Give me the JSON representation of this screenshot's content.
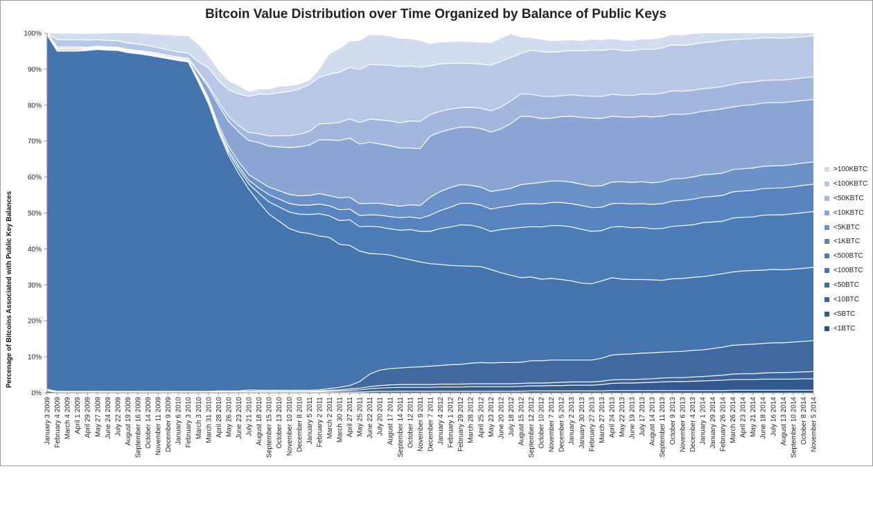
{
  "chart_data": {
    "type": "area",
    "title": "Bitcoin Value Distribution over Time Organized by Balance of Public Keys",
    "ylabel": "Percenage of Bitcoins  Associated with Public Key Balances",
    "xlabel": "",
    "ylim": [
      0,
      100
    ],
    "yticks": [
      "0%",
      "10%",
      "20%",
      "30%",
      "40%",
      "50%",
      "60%",
      "70%",
      "80%",
      "90%",
      "100%"
    ],
    "grid": false,
    "legend": "right",
    "x": [
      "January 3 2009",
      "February 4 2009",
      "March 4 2009",
      "April 1 2009",
      "April 29 2009",
      "May 27 2009",
      "June 24 2009",
      "July 22 2009",
      "August 19 2009",
      "September 16 2009",
      "October 14 2009",
      "November 11 2009",
      "December 9 2009",
      "January 6 2010",
      "February 3 2010",
      "March 3 2010",
      "March 31 2010",
      "April 28 2010",
      "May 26 2010",
      "June 23 2010",
      "July 21 2010",
      "August 18 2010",
      "September 15 2010",
      "October 13 2010",
      "November 10 2010",
      "December 8 2010",
      "January 5 2011",
      "February 2 2011",
      "March 2 2011",
      "March 30 2011",
      "April 27 2011",
      "May 25 2011",
      "June 22 2011",
      "July 20 2011",
      "August 17 2011",
      "September 14 2011",
      "October 12 2011",
      "November 9 2011",
      "December 7 2011",
      "January 4 2012",
      "February 1 2012",
      "February 29 2012",
      "March 28 2012",
      "April 25 2012",
      "May 23 2012",
      "June 20 2012",
      "July 18 2012",
      "August 15 2012",
      "September 12 2012",
      "October 10 2012",
      "November 7 2012",
      "December 5 2012",
      "January 2 2013",
      "January 30 2013",
      "February 27 2013",
      "March 27 2013",
      "April 24 2013",
      "May 22 2013",
      "June 19 2013",
      "July 17 2013",
      "August 14 2013",
      "September 11 2013",
      "October 9 2013",
      "November 6 2013",
      "December 4 2013",
      "January 1 2014",
      "January 29 2014",
      "February 26 2014",
      "March 26 2014",
      "April 23 2014",
      "May 21 2014",
      "June 18 2014",
      "July 16 2014",
      "August 13 2014",
      "September 10 2014",
      "October 8 2014",
      "November 5 2014"
    ],
    "series": [
      {
        "name": "<1BTC",
        "color": "#2c4f82",
        "values": [
          0.5,
          0.1,
          0.1,
          0.1,
          0.1,
          0.1,
          0.1,
          0.1,
          0.1,
          0.1,
          0.1,
          0.1,
          0.1,
          0.1,
          0.1,
          0.1,
          0.1,
          0.1,
          0.1,
          0.1,
          0.1,
          0.1,
          0.1,
          0.1,
          0.1,
          0.1,
          0.1,
          0.1,
          0.1,
          0.1,
          0.2,
          0.2,
          0.3,
          0.4,
          0.4,
          0.4,
          0.4,
          0.4,
          0.4,
          0.4,
          0.4,
          0.4,
          0.4,
          0.4,
          0.4,
          0.4,
          0.4,
          0.4,
          0.5,
          0.5,
          0.5,
          0.5,
          0.5,
          0.5,
          0.5,
          0.5,
          0.6,
          0.6,
          0.6,
          0.6,
          0.6,
          0.6,
          0.6,
          0.6,
          0.6,
          0.6,
          0.6,
          0.6,
          0.7,
          0.7,
          0.7,
          0.7,
          0.7,
          0.7,
          0.7,
          0.7,
          0.7
        ]
      },
      {
        "name": "<5BTC",
        "color": "#34598f",
        "values": [
          0.2,
          0.1,
          0.1,
          0.1,
          0.1,
          0.1,
          0.1,
          0.1,
          0.1,
          0.1,
          0.1,
          0.1,
          0.1,
          0.1,
          0.1,
          0.1,
          0.1,
          0.1,
          0.1,
          0.1,
          0.1,
          0.1,
          0.1,
          0.1,
          0.1,
          0.1,
          0.1,
          0.2,
          0.3,
          0.4,
          0.5,
          0.6,
          0.8,
          0.9,
          1.0,
          1.1,
          1.1,
          1.1,
          1.1,
          1.2,
          1.2,
          1.2,
          1.3,
          1.3,
          1.3,
          1.3,
          1.3,
          1.4,
          1.4,
          1.4,
          1.5,
          1.5,
          1.6,
          1.6,
          1.6,
          1.8,
          2.0,
          2.1,
          2.1,
          2.2,
          2.3,
          2.4,
          2.5,
          2.5,
          2.6,
          2.7,
          2.8,
          2.9,
          3.0,
          3.0,
          3.0,
          3.1,
          3.1,
          3.1,
          3.1,
          3.2,
          3.2
        ]
      },
      {
        "name": "<10BTC",
        "color": "#3c629b",
        "values": [
          0.1,
          0.1,
          0.1,
          0.1,
          0.1,
          0.1,
          0.1,
          0.1,
          0.1,
          0.1,
          0.1,
          0.1,
          0.1,
          0.1,
          0.1,
          0.1,
          0.1,
          0.2,
          0.2,
          0.2,
          0.2,
          0.2,
          0.2,
          0.2,
          0.2,
          0.2,
          0.2,
          0.2,
          0.3,
          0.3,
          0.4,
          0.5,
          0.6,
          0.7,
          0.8,
          0.8,
          0.8,
          0.8,
          0.8,
          0.8,
          0.8,
          0.8,
          0.8,
          0.8,
          0.8,
          0.8,
          0.8,
          0.8,
          0.8,
          0.8,
          0.8,
          0.9,
          0.9,
          0.9,
          0.9,
          0.9,
          1.0,
          1.0,
          1.0,
          1.0,
          1.0,
          1.1,
          1.1,
          1.1,
          1.2,
          1.2,
          1.3,
          1.4,
          1.5,
          1.6,
          1.6,
          1.7,
          1.8,
          1.8,
          1.9,
          1.9,
          2.0
        ]
      },
      {
        "name": "<50BTC",
        "color": "#41699f",
        "values": [
          0.2,
          0.1,
          0.1,
          0.1,
          0.1,
          0.1,
          0.1,
          0.1,
          0.1,
          0.1,
          0.1,
          0.1,
          0.1,
          0.1,
          0.1,
          0.1,
          0.1,
          0.1,
          0.1,
          0.1,
          0.4,
          0.3,
          0.3,
          0.3,
          0.3,
          0.3,
          0.3,
          0.3,
          0.5,
          0.7,
          0.9,
          1.8,
          3.5,
          4.3,
          4.5,
          4.6,
          4.8,
          4.9,
          5.1,
          5.2,
          5.4,
          5.5,
          5.7,
          5.9,
          5.8,
          5.9,
          5.9,
          5.9,
          6.2,
          6.2,
          6.3,
          6.2,
          6.1,
          6.1,
          6.1,
          6.4,
          6.9,
          7.0,
          7.1,
          7.2,
          7.2,
          7.2,
          7.2,
          7.3,
          7.4,
          7.4,
          7.6,
          7.8,
          8.0,
          8.1,
          8.2,
          8.2,
          8.3,
          8.3,
          8.4,
          8.5,
          8.6
        ]
      },
      {
        "name": "<100BTC",
        "color": "#4674ae",
        "values": [
          98.5,
          94.6,
          94.6,
          94.6,
          94.8,
          95.1,
          94.9,
          94.8,
          94.2,
          93.9,
          93.5,
          93.0,
          92.5,
          92.0,
          91.6,
          86.0,
          80.0,
          72.0,
          65.5,
          60.5,
          55.8,
          52.3,
          49.0,
          47.0,
          45.0,
          44.0,
          43.6,
          42.8,
          42.0,
          39.8,
          39.0,
          36.3,
          33.5,
          32.3,
          31.6,
          30.7,
          29.9,
          29.2,
          28.5,
          28.1,
          27.6,
          27.4,
          27.0,
          26.7,
          26.0,
          25.0,
          24.3,
          23.5,
          23.3,
          22.7,
          22.7,
          22.4,
          22.0,
          21.4,
          21.2,
          21.5,
          21.5,
          20.9,
          20.7,
          20.5,
          20.3,
          20.0,
          20.3,
          20.3,
          20.3,
          20.4,
          20.4,
          20.4,
          20.4,
          20.5,
          20.5,
          20.4,
          20.4,
          20.3,
          20.3,
          20.3,
          20.4
        ]
      },
      {
        "name": "<500BTC",
        "color": "#4c7db8",
        "values": [
          0.1,
          0.3,
          0.3,
          0.3,
          0.2,
          0.2,
          0.2,
          0.2,
          0.2,
          0.2,
          0.2,
          0.2,
          0.2,
          0.2,
          0.2,
          0.3,
          0.5,
          0.6,
          0.8,
          1.2,
          1.5,
          2.5,
          3.4,
          4.0,
          4.6,
          5.0,
          5.3,
          6.2,
          6.0,
          6.6,
          7.1,
          6.8,
          7.6,
          7.5,
          7.3,
          7.6,
          8.4,
          8.5,
          9.0,
          10.0,
          10.7,
          11.4,
          11.4,
          10.9,
          10.6,
          12.0,
          13.0,
          14.0,
          14.0,
          14.5,
          14.7,
          15.0,
          15.0,
          15.0,
          14.6,
          14.0,
          14.1,
          14.6,
          14.4,
          14.5,
          14.2,
          14.4,
          14.6,
          14.7,
          14.6,
          15.0,
          14.8,
          14.6,
          15.0,
          14.9,
          14.9,
          15.3,
          15.2,
          15.3,
          15.4,
          15.5,
          15.5
        ]
      },
      {
        "name": "<1KBTC",
        "color": "#5784c0",
        "values": [
          0.1,
          0.3,
          0.3,
          0.3,
          0.2,
          0.2,
          0.2,
          0.2,
          0.2,
          0.2,
          0.2,
          0.2,
          0.2,
          0.2,
          0.2,
          0.4,
          0.5,
          0.6,
          0.7,
          0.8,
          1.0,
          1.5,
          2.0,
          2.2,
          2.4,
          2.5,
          2.6,
          2.7,
          2.8,
          3.0,
          3.0,
          3.1,
          3.2,
          3.3,
          3.4,
          3.5,
          3.5,
          3.6,
          4.5,
          5.0,
          5.5,
          6.0,
          6.1,
          6.2,
          6.2,
          6.2,
          6.3,
          6.5,
          6.4,
          6.4,
          6.4,
          6.4,
          6.5,
          6.6,
          6.6,
          6.5,
          6.5,
          6.5,
          6.6,
          6.6,
          6.8,
          6.9,
          7.0,
          7.0,
          7.1,
          7.1,
          7.1,
          7.2,
          7.3,
          7.3,
          7.4,
          7.4,
          7.4,
          7.5,
          7.5,
          7.6,
          7.6
        ]
      },
      {
        "name": "<5KBTC",
        "color": "#6b91c8",
        "values": [
          0.1,
          0.2,
          0.2,
          0.2,
          0.2,
          0.2,
          0.2,
          0.2,
          0.2,
          0.2,
          0.2,
          0.2,
          0.2,
          0.2,
          0.2,
          0.4,
          0.6,
          0.8,
          1.0,
          1.2,
          1.6,
          1.9,
          2.1,
          2.3,
          2.5,
          2.6,
          2.7,
          2.9,
          2.8,
          3.3,
          3.3,
          3.3,
          3.2,
          3.3,
          3.3,
          3.2,
          3.4,
          3.6,
          5.0,
          5.3,
          5.5,
          5.2,
          5.0,
          5.0,
          4.9,
          4.8,
          4.9,
          5.4,
          5.6,
          6.0,
          6.0,
          6.0,
          6.0,
          5.9,
          6.0,
          6.0,
          6.0,
          6.0,
          6.0,
          6.1,
          6.0,
          6.1,
          6.2,
          6.1,
          6.2,
          6.2,
          6.2,
          6.2,
          6.2,
          6.2,
          6.2,
          6.2,
          6.2,
          6.2,
          6.2,
          6.2,
          6.2
        ]
      },
      {
        "name": "<10KBTC",
        "color": "#8aa5d3",
        "values": [
          0.1,
          0.3,
          0.3,
          0.3,
          0.2,
          0.2,
          0.2,
          0.2,
          0.2,
          0.2,
          0.3,
          0.3,
          0.3,
          0.3,
          0.3,
          1.5,
          3.0,
          5.5,
          7.0,
          8.3,
          9.5,
          10.7,
          11.4,
          12.2,
          13.0,
          13.6,
          14.0,
          15.0,
          15.5,
          16.0,
          16.4,
          16.6,
          17.0,
          16.5,
          16.4,
          16.2,
          15.8,
          15.8,
          17.0,
          16.5,
          16.2,
          16.0,
          16.2,
          16.3,
          16.5,
          17.0,
          18.0,
          19.0,
          18.6,
          17.8,
          17.5,
          17.9,
          18.3,
          18.6,
          18.9,
          18.7,
          18.3,
          18.0,
          18.1,
          18.2,
          18.3,
          18.2,
          18.0,
          17.8,
          17.7,
          17.7,
          17.8,
          17.9,
          17.4,
          17.6,
          17.6,
          17.6,
          17.6,
          17.5,
          17.5,
          17.4,
          17.4
        ]
      },
      {
        "name": "<50KBTC",
        "color": "#a2b6de",
        "values": [
          0.1,
          0.1,
          0.1,
          0.1,
          0.1,
          0.1,
          0.1,
          0.1,
          0.1,
          0.1,
          0.1,
          0.1,
          0.1,
          0.1,
          0.1,
          0.3,
          0.6,
          1.0,
          1.4,
          1.8,
          2.2,
          2.5,
          2.8,
          3.1,
          3.3,
          3.5,
          3.8,
          4.4,
          4.6,
          5.0,
          5.4,
          6.0,
          6.4,
          6.7,
          6.9,
          7.0,
          7.5,
          7.6,
          6.0,
          5.8,
          5.6,
          5.4,
          5.5,
          5.7,
          5.9,
          6.1,
          6.3,
          6.3,
          6.2,
          6.2,
          6.0,
          5.8,
          6.0,
          6.0,
          6.1,
          6.1,
          6.1,
          6.1,
          6.1,
          6.2,
          6.3,
          6.4,
          6.5,
          6.5,
          6.4,
          6.3,
          6.2,
          6.2,
          6.3,
          6.4,
          6.4,
          6.3,
          6.3,
          6.3,
          6.3,
          6.3,
          6.3
        ]
      },
      {
        "name": "<100KBTC",
        "color": "#b8c7e6",
        "values": [
          0.0,
          2.0,
          2.0,
          2.0,
          2.0,
          1.8,
          1.8,
          1.8,
          1.8,
          1.8,
          1.7,
          1.6,
          1.5,
          1.4,
          1.5,
          2.8,
          4.8,
          5.8,
          7.3,
          8.8,
          10.0,
          11.0,
          11.6,
          12.0,
          12.3,
          12.6,
          13.0,
          13.0,
          13.7,
          14.0,
          14.3,
          14.7,
          15.2,
          15.3,
          15.5,
          15.6,
          15.3,
          15.0,
          13.5,
          13.2,
          12.7,
          12.4,
          12.2,
          12.2,
          12.7,
          12.6,
          12.1,
          11.2,
          12.3,
          12.4,
          12.3,
          12.3,
          12.3,
          12.5,
          12.8,
          12.8,
          12.6,
          12.4,
          12.4,
          12.5,
          12.5,
          12.6,
          12.8,
          12.7,
          12.8,
          12.8,
          12.8,
          12.8,
          12.4,
          12.1,
          12.0,
          11.8,
          11.7,
          11.6,
          11.5,
          11.4,
          11.4
        ]
      },
      {
        "name": ">100KBTC",
        "color": "#d2dcef",
        "values": [
          0.0,
          1.7,
          1.7,
          1.7,
          1.7,
          1.7,
          2.0,
          2.1,
          2.7,
          3.0,
          3.2,
          3.6,
          4.1,
          4.5,
          4.7,
          4.8,
          3.3,
          2.8,
          2.5,
          2.2,
          1.3,
          1.3,
          1.4,
          1.6,
          1.5,
          1.3,
          1.1,
          2.0,
          5.6,
          6.4,
          7.2,
          8.0,
          8.3,
          8.3,
          8.0,
          7.8,
          7.5,
          7.4,
          6.1,
          6.0,
          6.0,
          6.0,
          6.0,
          6.0,
          6.2,
          6.4,
          6.5,
          4.5,
          3.4,
          3.3,
          3.1,
          3.0,
          2.9,
          2.7,
          2.9,
          2.9,
          2.8,
          2.8,
          2.8,
          2.7,
          2.8,
          2.8,
          2.8,
          2.8,
          2.9,
          2.8,
          2.8,
          2.8,
          2.8,
          2.8,
          2.8,
          2.8,
          2.8,
          2.8,
          2.7,
          2.8,
          2.5
        ]
      }
    ]
  }
}
